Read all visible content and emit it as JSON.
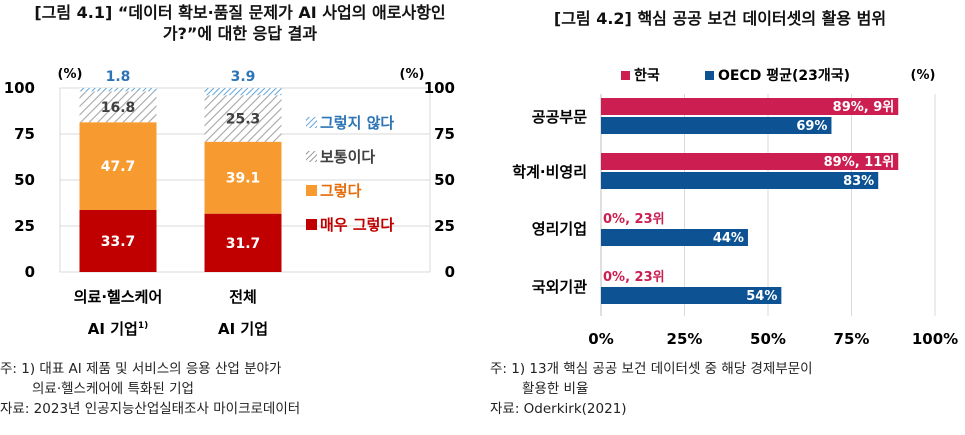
{
  "left": {
    "title": "[그림 4.1] “데이터 확보·품질 문제가 AI 사업의 애로사항인가?”에 대한 응답 결과",
    "unit_left": "(%)",
    "unit_right": "(%)",
    "notes": [
      "주: 1) 대표 AI 제품 및 서비스의 응용 산업 분야가",
      "의료·헬스케어에 특화된 기업",
      "자료: 2023년 인공지능산업실태조사 마이크로데이터"
    ],
    "footnote_mark": "1)"
  },
  "right": {
    "title": "[그림 4.2] 핵심 공공 보건 데이터셋의 활용 범위",
    "unit": "(%)",
    "notes": [
      "주: 1) 13개 핵심 공공 보건 데이터셋 중 해당 경제부문이",
      "활용한 비율",
      "자료: Oderkirk(2021)"
    ]
  },
  "colors": {
    "dark_red": "#c00000",
    "orange": "#f79b31",
    "gray_hatch": "#bfbfbf",
    "light_blue": "#4e9bd6",
    "pink": "#cc1e51",
    "navy": "#0d5293"
  },
  "chart_data": [
    {
      "type": "bar",
      "stacked": true,
      "title": "[그림 4.1] “데이터 확보·품질 문제가 AI 사업의 애로사항인가?”에 대한 응답 결과",
      "categories": [
        "의료·헬스케어 AI 기업",
        "전체 AI 기업"
      ],
      "category_lines": [
        [
          "의료·헬스케어",
          "AI 기업"
        ],
        [
          "전체",
          "AI 기업"
        ]
      ],
      "series": [
        {
          "name": "매우 그렇다",
          "values": [
            33.7,
            31.7
          ],
          "color": "#c00000"
        },
        {
          "name": "그렇다",
          "values": [
            47.7,
            39.1
          ],
          "color": "#f79b31"
        },
        {
          "name": "보통이다",
          "values": [
            16.8,
            25.3
          ],
          "color": "#bfbfbf"
        },
        {
          "name": "그렇지 않다",
          "values": [
            1.8,
            3.9
          ],
          "color": "#4e9bd6"
        }
      ],
      "ylim": [
        0,
        100
      ],
      "yticks": [
        "0",
        "25",
        "50",
        "75",
        "100"
      ],
      "legend_order": [
        "그렇지 않다",
        "보통이다",
        "그렇다",
        "매우 그렇다"
      ],
      "legend_position": "right"
    },
    {
      "type": "bar",
      "orientation": "horizontal",
      "title": "[그림 4.2] 핵심 공공 보건 데이터셋의 활용 범위",
      "categories": [
        "공공부문",
        "학계·비영리",
        "영리기업",
        "국외기관"
      ],
      "series": [
        {
          "name": "한국",
          "values": [
            89,
            89,
            0,
            0
          ],
          "labels": [
            "89%, 9위",
            "89%, 11위",
            "0%, 23위",
            "0%, 23위"
          ],
          "color": "#cc1e51"
        },
        {
          "name": "OECD 평균(23개국)",
          "values": [
            69,
            83,
            44,
            54
          ],
          "labels": [
            "69%",
            "83%",
            "44%",
            "54%"
          ],
          "color": "#0d5293"
        }
      ],
      "xlim": [
        0,
        100
      ],
      "xticks": [
        "0%",
        "25%",
        "50%",
        "75%",
        "100%"
      ],
      "legend_position": "top"
    }
  ]
}
